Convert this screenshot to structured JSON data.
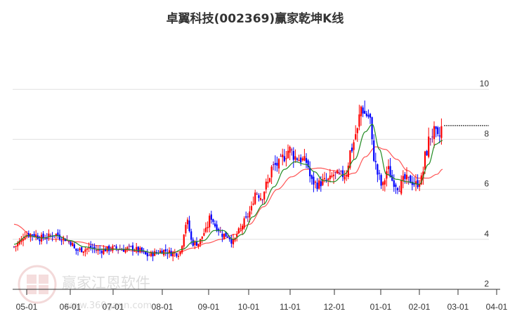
{
  "header": {
    "title": "卓翼科技(002369)赢家乾坤K线"
  },
  "watermark": {
    "brand": "赢家江恩软件",
    "url": "www.360gann.com",
    "seal": [
      "江",
      "赢",
      "恩",
      "家"
    ]
  },
  "colors": {
    "up": "#ff0000",
    "down": "#0000ff",
    "neutral": "#800080",
    "ma_short": "#228b22",
    "ma_long": "#ff5555",
    "grid": "#e0e0e0",
    "axis": "#333333"
  },
  "chart_data": {
    "type": "candlestick",
    "title": "卓翼科技(002369)赢家乾坤K线",
    "xlabel": "",
    "ylabel": "",
    "ylim": [
      2,
      10.4
    ],
    "y_ticks": [
      2,
      4,
      6,
      8,
      10
    ],
    "x_ticks": [
      "05-01",
      "06-01",
      "07-01",
      "08-01",
      "09-01",
      "10-01",
      "11-01",
      "12-01",
      "01-01",
      "02-01",
      "03-01",
      "04-01"
    ],
    "grid": true,
    "reference_line": {
      "value": 8.55,
      "style": "dashed"
    },
    "series": [
      {
        "name": "K线",
        "type": "candlestick"
      },
      {
        "name": "短期均线",
        "type": "line",
        "color": "#228b22"
      },
      {
        "name": "长期均线",
        "type": "line",
        "color": "#ff5555"
      }
    ],
    "price_path": [
      [
        20,
        3.7
      ],
      [
        28,
        3.9
      ],
      [
        36,
        4.2
      ],
      [
        48,
        4.2
      ],
      [
        58,
        4.05
      ],
      [
        68,
        4.1
      ],
      [
        78,
        4.2
      ],
      [
        90,
        4.05
      ],
      [
        100,
        3.9
      ],
      [
        108,
        3.55
      ],
      [
        118,
        3.6
      ],
      [
        130,
        3.65
      ],
      [
        140,
        3.55
      ],
      [
        152,
        3.6
      ],
      [
        162,
        3.65
      ],
      [
        175,
        3.6
      ],
      [
        188,
        3.65
      ],
      [
        198,
        3.55
      ],
      [
        210,
        3.35
      ],
      [
        220,
        3.45
      ],
      [
        232,
        3.55
      ],
      [
        245,
        3.45
      ],
      [
        255,
        3.45
      ],
      [
        266,
        4.7
      ],
      [
        274,
        3.85
      ],
      [
        282,
        3.85
      ],
      [
        292,
        4.3
      ],
      [
        300,
        4.9
      ],
      [
        308,
        4.5
      ],
      [
        316,
        4.2
      ],
      [
        324,
        4.15
      ],
      [
        332,
        3.9
      ],
      [
        340,
        4.3
      ],
      [
        348,
        4.7
      ],
      [
        356,
        5.1
      ],
      [
        364,
        5.9
      ],
      [
        372,
        5.7
      ],
      [
        380,
        6.2
      ],
      [
        388,
        6.9
      ],
      [
        396,
        7.0
      ],
      [
        404,
        7.3
      ],
      [
        412,
        7.6
      ],
      [
        420,
        7.3
      ],
      [
        428,
        7.2
      ],
      [
        436,
        7.1
      ],
      [
        444,
        6.3
      ],
      [
        452,
        6.2
      ],
      [
        460,
        6.3
      ],
      [
        468,
        6.35
      ],
      [
        476,
        6.6
      ],
      [
        484,
        6.55
      ],
      [
        492,
        6.6
      ],
      [
        500,
        7.6
      ],
      [
        508,
        8.3
      ],
      [
        514,
        9.3
      ],
      [
        520,
        9.0
      ],
      [
        526,
        8.9
      ],
      [
        532,
        7.3
      ],
      [
        538,
        6.6
      ],
      [
        544,
        6.1
      ],
      [
        552,
        6.8
      ],
      [
        560,
        6.3
      ],
      [
        568,
        6.1
      ],
      [
        576,
        6.4
      ],
      [
        584,
        6.35
      ],
      [
        592,
        6.2
      ],
      [
        600,
        6.4
      ],
      [
        606,
        7.4
      ],
      [
        612,
        8.1
      ],
      [
        618,
        8.3
      ],
      [
        624,
        8.0
      ],
      [
        630,
        8.55
      ]
    ],
    "ma_short": [
      [
        20,
        3.8
      ],
      [
        40,
        4.15
      ],
      [
        60,
        4.05
      ],
      [
        80,
        4.15
      ],
      [
        100,
        3.95
      ],
      [
        120,
        3.7
      ],
      [
        140,
        3.6
      ],
      [
        160,
        3.6
      ],
      [
        180,
        3.6
      ],
      [
        200,
        3.55
      ],
      [
        220,
        3.45
      ],
      [
        245,
        3.45
      ],
      [
        260,
        3.6
      ],
      [
        275,
        3.9
      ],
      [
        290,
        3.95
      ],
      [
        305,
        4.35
      ],
      [
        318,
        4.35
      ],
      [
        332,
        4.0
      ],
      [
        345,
        4.2
      ],
      [
        360,
        4.9
      ],
      [
        375,
        5.4
      ],
      [
        390,
        6.1
      ],
      [
        405,
        6.8
      ],
      [
        420,
        7.1
      ],
      [
        435,
        7.0
      ],
      [
        448,
        6.7
      ],
      [
        460,
        6.35
      ],
      [
        475,
        6.3
      ],
      [
        490,
        6.6
      ],
      [
        505,
        7.2
      ],
      [
        520,
        8.3
      ],
      [
        530,
        8.6
      ],
      [
        540,
        7.6
      ],
      [
        550,
        6.6
      ],
      [
        565,
        6.4
      ],
      [
        580,
        6.3
      ],
      [
        597,
        6.2
      ],
      [
        610,
        7.0
      ],
      [
        620,
        7.8
      ],
      [
        630,
        7.95
      ]
    ],
    "ma_long": [
      [
        20,
        4.6
      ],
      [
        50,
        4.1
      ],
      [
        80,
        4.0
      ],
      [
        110,
        3.9
      ],
      [
        140,
        3.75
      ],
      [
        170,
        3.6
      ],
      [
        200,
        3.5
      ],
      [
        230,
        3.45
      ],
      [
        255,
        3.5
      ],
      [
        275,
        3.65
      ],
      [
        295,
        3.85
      ],
      [
        315,
        4.0
      ],
      [
        335,
        4.2
      ],
      [
        355,
        4.6
      ],
      [
        375,
        5.3
      ],
      [
        395,
        6.0
      ],
      [
        415,
        6.5
      ],
      [
        435,
        6.8
      ],
      [
        455,
        6.85
      ],
      [
        475,
        6.75
      ],
      [
        490,
        6.55
      ],
      [
        505,
        6.65
      ],
      [
        520,
        7.3
      ],
      [
        535,
        7.7
      ],
      [
        548,
        7.6
      ],
      [
        565,
        7.2
      ],
      [
        580,
        6.75
      ],
      [
        595,
        6.45
      ],
      [
        610,
        6.45
      ],
      [
        622,
        6.6
      ],
      [
        630,
        6.8
      ]
    ]
  }
}
